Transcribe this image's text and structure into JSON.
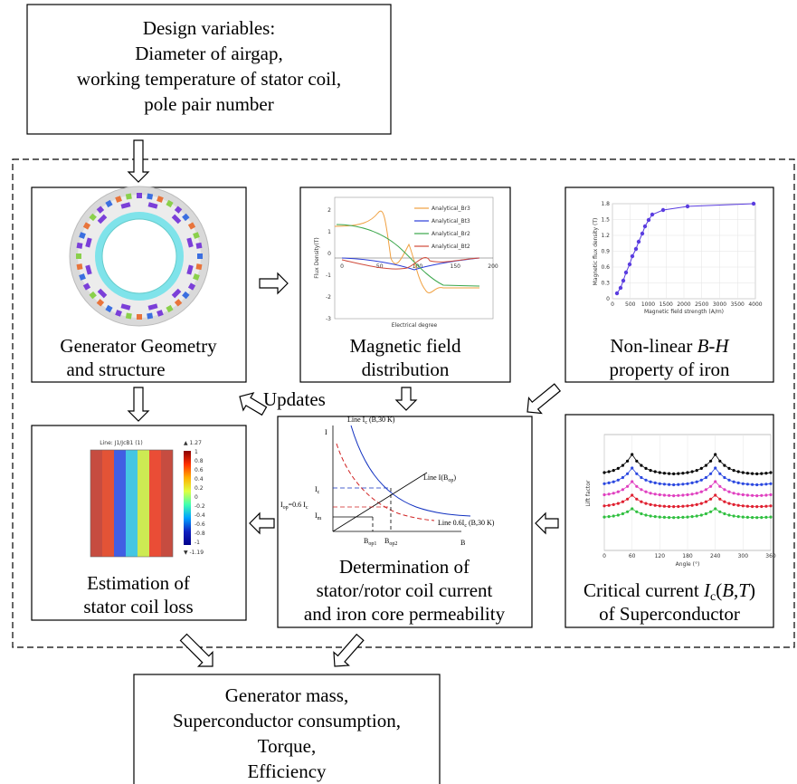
{
  "top_box": {
    "lines": [
      "Design variables:",
      "Diameter of airgap,",
      "working temperature of stator coil,",
      "pole pair number"
    ]
  },
  "updates": "Updates",
  "panels": {
    "geometry": {
      "caption": [
        "Generator Geometry",
        "and structure"
      ]
    },
    "field": {
      "caption": [
        "Magnetic field",
        "distribution"
      ],
      "yticks": [
        "2",
        "1",
        "0",
        "-1",
        "-2",
        "-3"
      ],
      "xticks": [
        "0",
        "50",
        "100",
        "150",
        "200"
      ],
      "ylabel": "Flux Density(T)",
      "xlabel": "Electrical degree",
      "legend": [
        "Analytical_Br3",
        "Analytical_Bt3",
        "Analytical_Br2",
        "Analytical_Bt2"
      ]
    },
    "bh": {
      "caption_line1": [
        "Non-linear ",
        "B-H"
      ],
      "caption_line2": "property of iron",
      "yticks": [
        "0",
        "0.3",
        "0.6",
        "0.9",
        "1.2",
        "1.5",
        "1.8"
      ],
      "xticks": [
        "0",
        "500",
        "1000",
        "1500",
        "2000",
        "2500",
        "3000",
        "3500",
        "4000"
      ],
      "ylabel": "Magnetic flux density (T)",
      "xlabel": "Magnetic field strength (A/m)"
    },
    "loss": {
      "caption": [
        "Estimation of",
        "stator coil loss"
      ],
      "plot_title": "Line: J1/JcB1 (1)",
      "max": "▲ 1.27",
      "min": "▼ -1.19",
      "colorbar_ticks": [
        "1",
        "0.8",
        "0.6",
        "0.4",
        "0.2",
        "0",
        "-0.2",
        "-0.4",
        "-0.6",
        "-0.8",
        "-1"
      ]
    },
    "determination": {
      "caption": [
        "Determination of",
        "stator/rotor coil current",
        "and iron core permeability"
      ],
      "axis_i": "I",
      "axis_b": "B",
      "line_ic": [
        "Line I",
        "c",
        " (B,30 K)"
      ],
      "line_iop": [
        "Line I(B",
        "op",
        ")"
      ],
      "line_06": [
        "Line 0.6I",
        "c",
        " (B,30 K)"
      ],
      "lab_ic": [
        "I",
        "c"
      ],
      "lab_iop": [
        "I",
        "op",
        "=0.6 I",
        "c"
      ],
      "lab_im": [
        "I",
        "m"
      ],
      "lab_bop1": [
        "B",
        "op1"
      ],
      "lab_bop2": [
        "B",
        "op2"
      ]
    },
    "critical": {
      "caption_line1": [
        "Critical current ",
        "I",
        "c",
        "(",
        "B",
        ",",
        "T",
        ")"
      ],
      "caption_line2": "of Superconductor",
      "xticks": [
        "0",
        "60",
        "120",
        "180",
        "240",
        "300",
        "360"
      ],
      "ylabel": "Lift factor",
      "xlabel": "Angle (°)"
    }
  },
  "bottom_box": {
    "lines": [
      "Generator mass,",
      "Superconductor consumption,",
      "Torque,",
      "Efficiency"
    ]
  }
}
